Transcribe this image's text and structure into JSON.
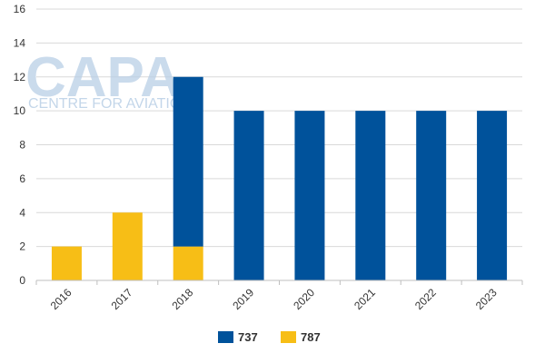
{
  "chart_data": {
    "type": "bar",
    "stacked": true,
    "categories": [
      "2016",
      "2017",
      "2018",
      "2019",
      "2020",
      "2021",
      "2022",
      "2023"
    ],
    "series": [
      {
        "name": "737",
        "color": "#00529b",
        "values": [
          0,
          0,
          10,
          10,
          10,
          10,
          10,
          10
        ]
      },
      {
        "name": "787",
        "color": "#f7be16",
        "values": [
          2,
          4,
          2,
          0,
          0,
          0,
          0,
          0
        ]
      }
    ],
    "ylim": [
      0,
      16
    ],
    "yticks": [
      0,
      2,
      4,
      6,
      8,
      10,
      12,
      14,
      16
    ],
    "grid": true,
    "legend_position": "bottom",
    "title": "",
    "xlabel": "",
    "ylabel": ""
  },
  "watermark": {
    "logo": "CAPA",
    "tagline": "CENTRE FOR AVIATION"
  }
}
